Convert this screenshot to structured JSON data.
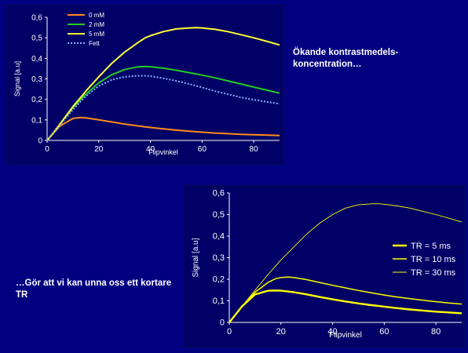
{
  "captions": {
    "top_right": "Ökande kontrastmedels-koncentration…",
    "bottom_left": "…Gör att vi kan unna oss ett kortare TR"
  },
  "chart_data": [
    {
      "type": "line",
      "title": "",
      "xlabel": "Flipvinkel",
      "ylabel": "Signal [a.u]",
      "xlim": [
        0,
        90
      ],
      "ylim": [
        0,
        0.6
      ],
      "xticks": [
        0,
        20,
        40,
        60,
        80
      ],
      "yticks": [
        0,
        0.1,
        0.2,
        0.3,
        0.4,
        0.5,
        0.6
      ],
      "ytick_labels": [
        "0",
        "0,1",
        "0,2",
        "0,3",
        "0,4",
        "0,5",
        "0,6"
      ],
      "grid": false,
      "legend": "top-left",
      "x": [
        0,
        2,
        5,
        10,
        13,
        15,
        20,
        25,
        30,
        35,
        38,
        40,
        45,
        50,
        55,
        58,
        60,
        65,
        70,
        75,
        80,
        85,
        90
      ],
      "series": [
        {
          "name": "0 mM",
          "color": "#ff8c1a",
          "dashed": false,
          "values": [
            0,
            0.03,
            0.07,
            0.107,
            0.112,
            0.11,
            0.1,
            0.09,
            0.08,
            0.071,
            0.066,
            0.063,
            0.056,
            0.05,
            0.045,
            0.042,
            0.04,
            0.036,
            0.033,
            0.03,
            0.028,
            0.026,
            0.024
          ]
        },
        {
          "name": "2 mM",
          "color": "#22cc22",
          "dashed": false,
          "values": [
            0,
            0.03,
            0.08,
            0.16,
            0.2,
            0.225,
            0.28,
            0.32,
            0.345,
            0.358,
            0.36,
            0.359,
            0.352,
            0.342,
            0.33,
            0.323,
            0.318,
            0.305,
            0.29,
            0.275,
            0.26,
            0.245,
            0.23
          ]
        },
        {
          "name": "5 mM",
          "color": "#ffff33",
          "dashed": false,
          "values": [
            0,
            0.03,
            0.08,
            0.165,
            0.21,
            0.24,
            0.31,
            0.375,
            0.43,
            0.475,
            0.5,
            0.51,
            0.53,
            0.543,
            0.548,
            0.549,
            0.548,
            0.541,
            0.53,
            0.515,
            0.5,
            0.483,
            0.465
          ]
        },
        {
          "name": "Fett",
          "color": "#8ab4ff",
          "dashed": true,
          "values": [
            0,
            0.03,
            0.075,
            0.15,
            0.19,
            0.215,
            0.265,
            0.295,
            0.31,
            0.315,
            0.315,
            0.313,
            0.303,
            0.29,
            0.275,
            0.265,
            0.258,
            0.24,
            0.225,
            0.21,
            0.198,
            0.188,
            0.178
          ]
        }
      ]
    },
    {
      "type": "line",
      "title": "",
      "xlabel": "Flipvinkel",
      "ylabel": "Signal [a.u]",
      "xlim": [
        0,
        90
      ],
      "ylim": [
        0,
        0.6
      ],
      "xticks": [
        0,
        20,
        40,
        60,
        80
      ],
      "yticks": [
        0,
        0.1,
        0.2,
        0.3,
        0.4,
        0.5,
        0.6
      ],
      "ytick_labels": [
        "0",
        "0,1",
        "0,2",
        "0,3",
        "0,4",
        "0,5",
        "0,6"
      ],
      "grid": false,
      "legend": "right",
      "x": [
        0,
        2,
        5,
        10,
        15,
        18,
        20,
        23,
        25,
        30,
        35,
        40,
        45,
        50,
        55,
        58,
        60,
        65,
        70,
        75,
        80,
        85,
        90
      ],
      "series": [
        {
          "name": "TR = 5 ms",
          "color": "#ffff00",
          "width": 2.4,
          "values": [
            0,
            0.03,
            0.075,
            0.13,
            0.147,
            0.148,
            0.147,
            0.143,
            0.14,
            0.13,
            0.118,
            0.107,
            0.097,
            0.088,
            0.08,
            0.076,
            0.073,
            0.066,
            0.06,
            0.055,
            0.05,
            0.046,
            0.042
          ]
        },
        {
          "name": "TR = 10 ms",
          "color": "#ffff00",
          "width": 1.5,
          "values": [
            0,
            0.03,
            0.075,
            0.14,
            0.185,
            0.203,
            0.208,
            0.21,
            0.208,
            0.198,
            0.185,
            0.172,
            0.16,
            0.148,
            0.137,
            0.131,
            0.127,
            0.118,
            0.11,
            0.103,
            0.096,
            0.09,
            0.085
          ]
        },
        {
          "name": "TR = 30 ms",
          "color": "#ffff00",
          "width": 0.9,
          "values": [
            0,
            0.03,
            0.075,
            0.15,
            0.222,
            0.262,
            0.29,
            0.325,
            0.35,
            0.41,
            0.46,
            0.5,
            0.53,
            0.545,
            0.55,
            0.55,
            0.548,
            0.54,
            0.53,
            0.515,
            0.5,
            0.483,
            0.465
          ]
        }
      ]
    }
  ]
}
